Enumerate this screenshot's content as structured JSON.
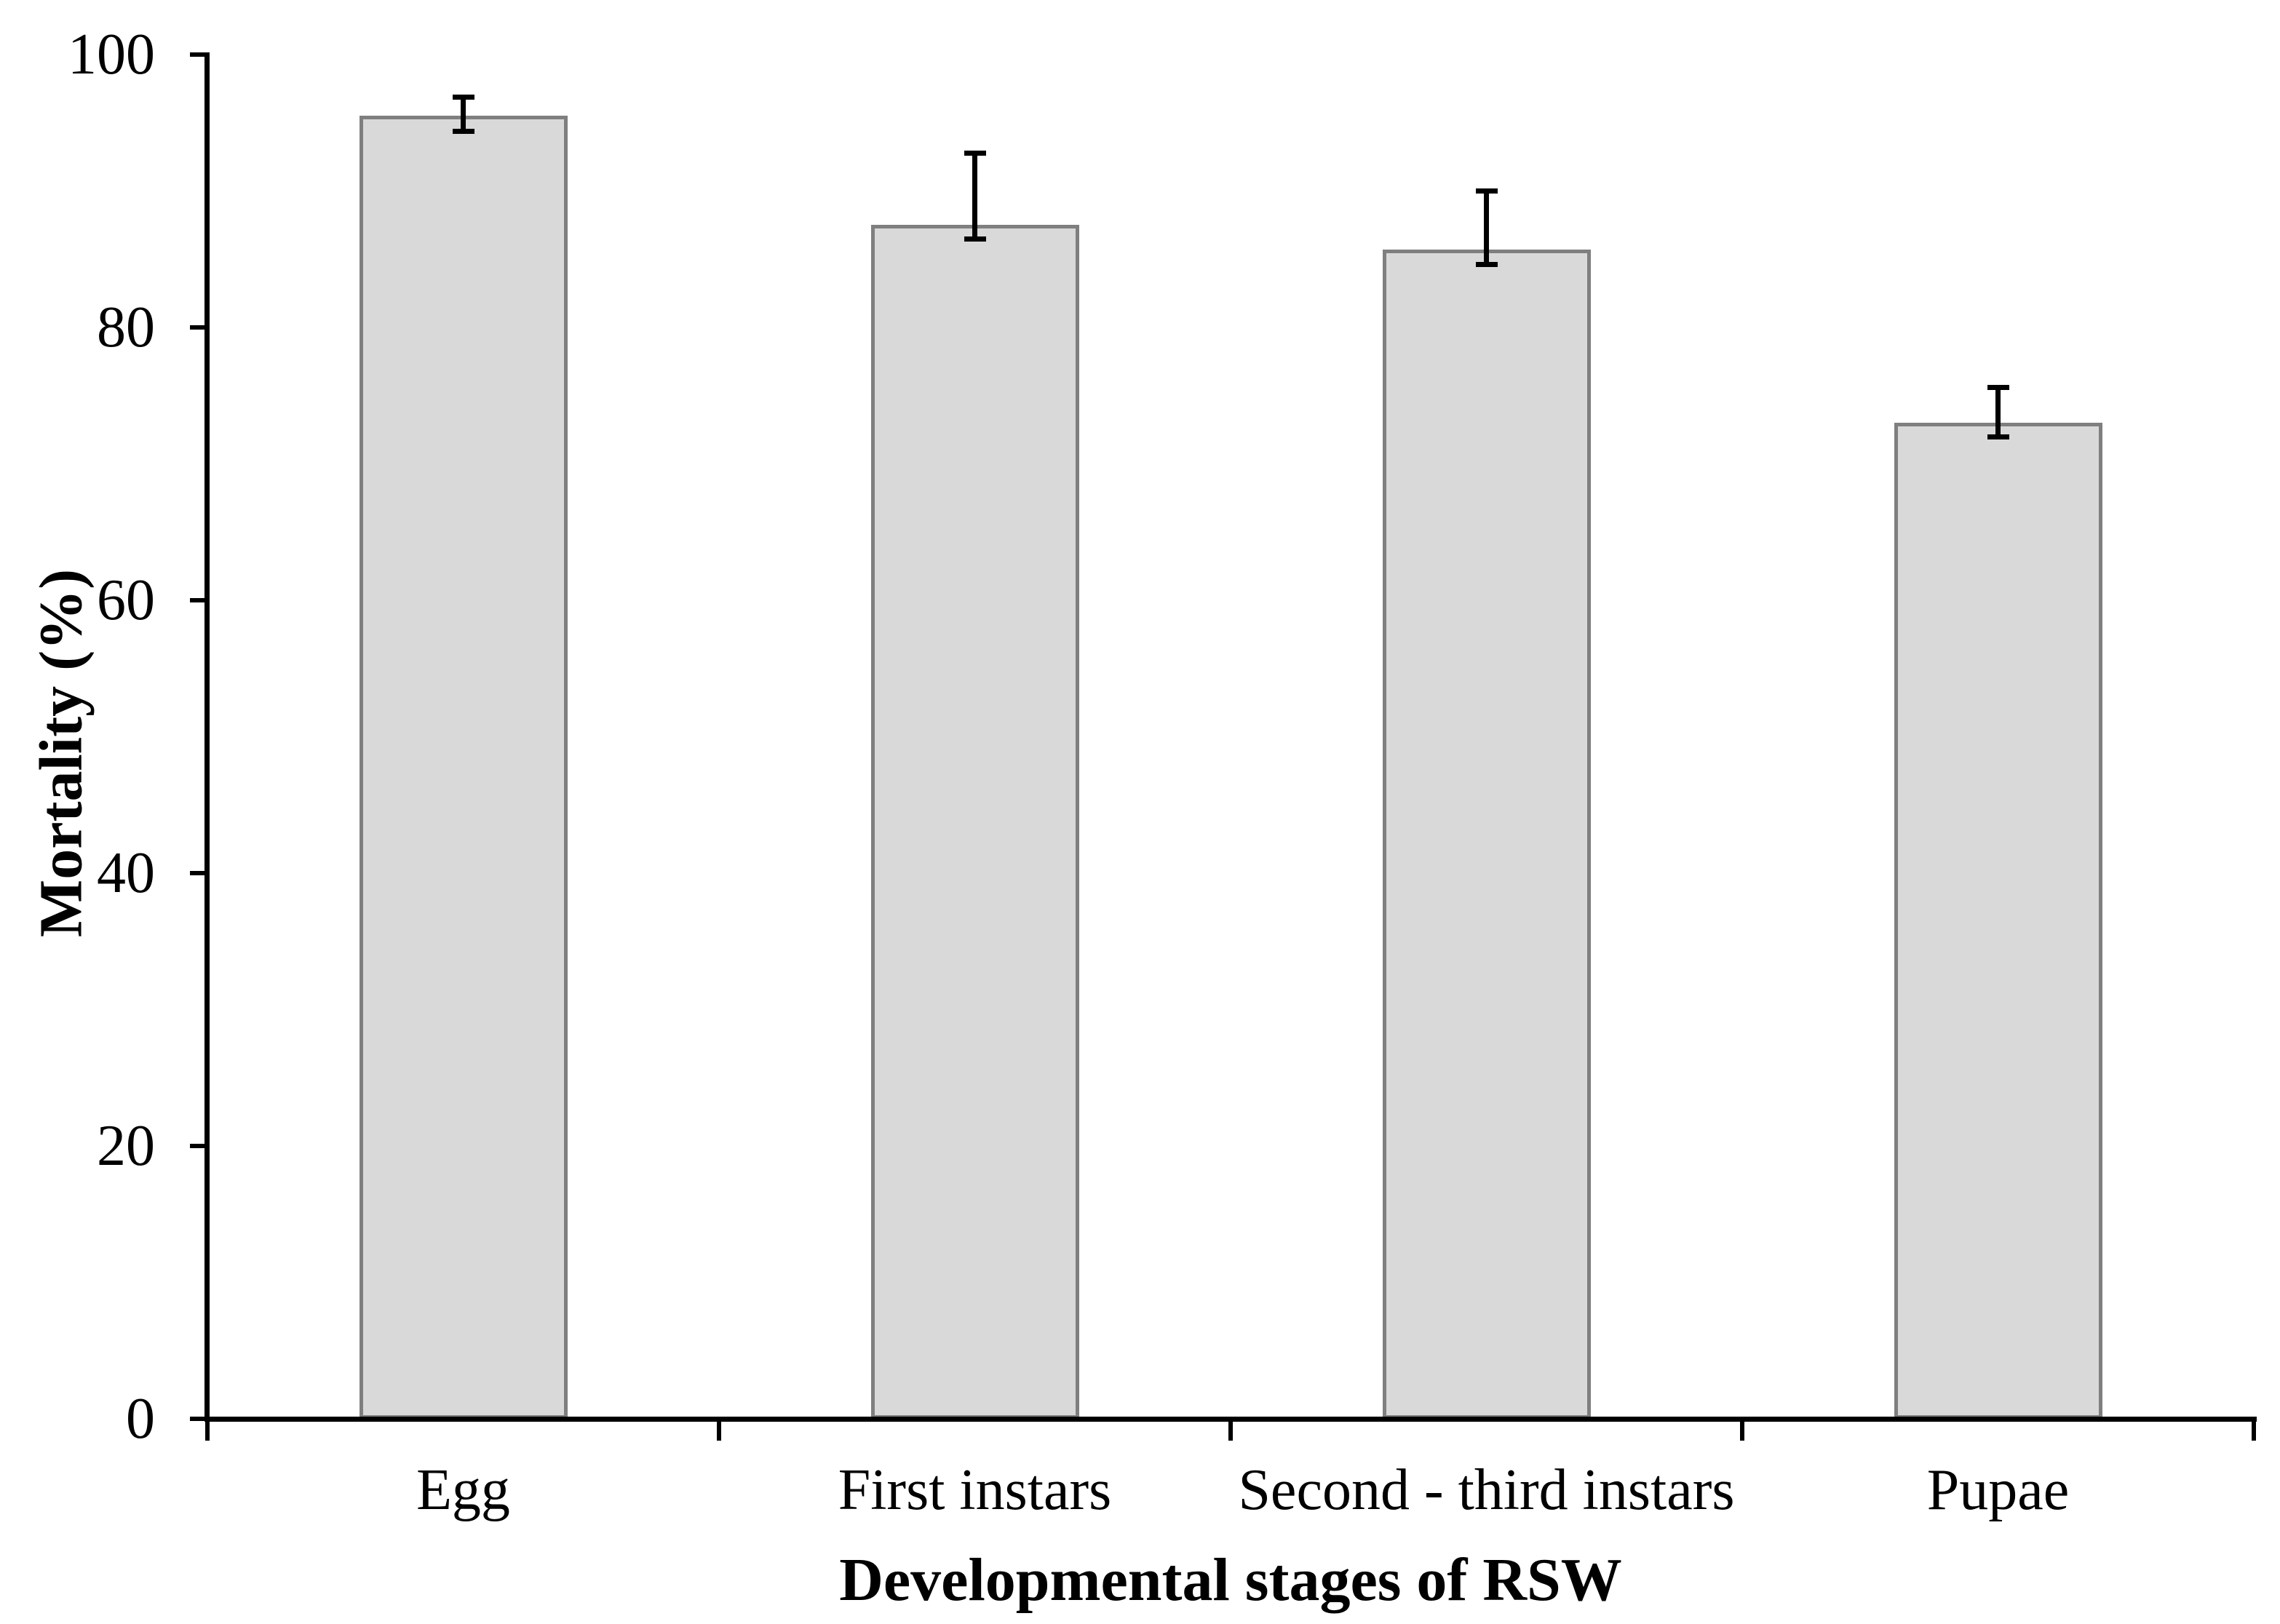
{
  "figure": {
    "background": "#ffffff",
    "text_color": "#000000"
  },
  "chart_data": {
    "type": "bar",
    "title": "",
    "xlabel": "Developmental stages of RSW",
    "ylabel": "Mortality (%)",
    "categories": [
      "Egg",
      "First instars",
      "Second - third instars",
      "Pupae"
    ],
    "values": [
      95.5,
      87.5,
      85.7,
      73.0
    ],
    "error_bars": {
      "upper": [
        96.9,
        92.8,
        90.0,
        75.6
      ],
      "lower": [
        94.4,
        86.5,
        84.6,
        72.0
      ]
    },
    "ylim": [
      0,
      100
    ],
    "yticks": [
      0,
      20,
      40,
      60,
      80,
      100
    ],
    "grid": false,
    "legend": false,
    "bar_fill": "#d9d9d9",
    "bar_border": "#7f7f7f",
    "error_color": "#000000",
    "axis_color": "#000000"
  }
}
